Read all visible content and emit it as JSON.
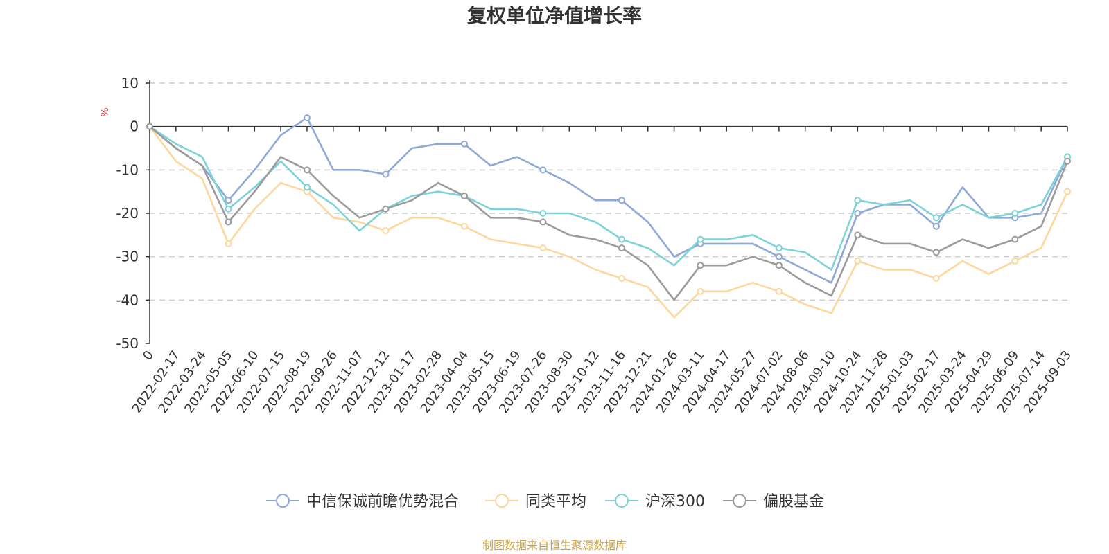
{
  "chart_data": {
    "type": "line",
    "title": "复权单位净值增长率",
    "ylabel": "%",
    "ylim": [
      -50,
      10
    ],
    "yticks": [
      10,
      0,
      -10,
      -20,
      -30,
      -40,
      -50
    ],
    "grid": "horizontal dashed",
    "legend_position": "bottom",
    "x_labels": [
      "0",
      "2022-02-17",
      "2022-03-24",
      "2022-05-05",
      "2022-06-10",
      "2022-07-15",
      "2022-08-19",
      "2022-09-26",
      "2022-11-07",
      "2022-12-12",
      "2023-01-17",
      "2023-02-28",
      "2023-04-04",
      "2023-05-15",
      "2023-06-19",
      "2023-07-26",
      "2023-08-30",
      "2023-10-12",
      "2023-11-16",
      "2023-12-21",
      "2024-01-26",
      "2024-03-11",
      "2024-04-17",
      "2024-05-27",
      "2024-07-02",
      "2024-08-06",
      "2024-09-10",
      "2024-10-24",
      "2024-11-28",
      "2025-01-03",
      "2025-02-17",
      "2025-03-24",
      "2025-04-29",
      "2025-06-09",
      "2025-07-14",
      "2025-09-03"
    ],
    "series": [
      {
        "name": "中信保诚前瞻优势混合",
        "color": "#8ea8d8",
        "values": [
          0,
          -5,
          -9,
          -17,
          -10,
          -2,
          2,
          -10,
          -10,
          -11,
          -5,
          -4,
          -4,
          -9,
          -7,
          -10,
          -13,
          -17,
          -17,
          -22,
          -30,
          -27,
          -27,
          -27,
          -30,
          -33,
          -36,
          -20,
          -18,
          -18,
          -23,
          -14,
          -21,
          -21,
          -20,
          -7
        ]
      },
      {
        "name": "同类平均",
        "color": "#fdd79b",
        "values": [
          0,
          -8,
          -12,
          -27,
          -19,
          -13,
          -15,
          -21,
          -22,
          -24,
          -21,
          -21,
          -23,
          -26,
          -27,
          -28,
          -30,
          -33,
          -35,
          -37,
          -44,
          -38,
          -38,
          -36,
          -38,
          -41,
          -43,
          -31,
          -33,
          -33,
          -35,
          -31,
          -34,
          -31,
          -28,
          -15
        ]
      },
      {
        "name": "沪深300",
        "color": "#7dd3d8",
        "values": [
          0,
          -4,
          -7,
          -19,
          -14,
          -8,
          -14,
          -18,
          -24,
          -19,
          -16,
          -15,
          -16,
          -19,
          -19,
          -20,
          -20,
          -22,
          -26,
          -28,
          -32,
          -26,
          -26,
          -25,
          -28,
          -29,
          -33,
          -17,
          -18,
          -17,
          -21,
          -18,
          -21,
          -20,
          -18,
          -7
        ]
      },
      {
        "name": "偏股基金",
        "color": "#9b9b9b",
        "values": [
          0,
          -5,
          -9,
          -22,
          -15,
          -7,
          -10,
          -16,
          -21,
          -19,
          -17,
          -13,
          -16,
          -21,
          -21,
          -22,
          -25,
          -26,
          -28,
          -32,
          -40,
          -32,
          -32,
          -30,
          -32,
          -36,
          -39,
          -25,
          -27,
          -27,
          -29,
          -26,
          -28,
          -26,
          -23,
          -8
        ]
      }
    ]
  },
  "legend": {
    "items": [
      "中信保诚前瞻优势混合",
      "同类平均",
      "沪深300",
      "偏股基金"
    ]
  },
  "footer": {
    "source": "制图数据来自恒生聚源数据库"
  }
}
